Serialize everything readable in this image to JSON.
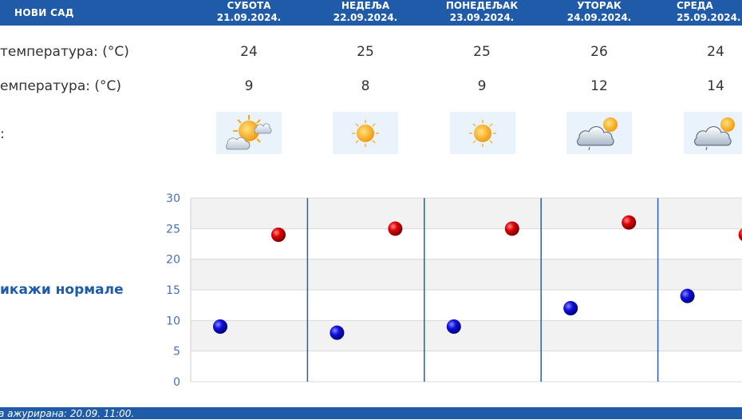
{
  "header": {
    "city": "НОВИ САД",
    "days": [
      {
        "name": "СУБОТА",
        "date": "21.09.2024."
      },
      {
        "name": "НЕДЕЉА",
        "date": "22.09.2024."
      },
      {
        "name": "ПОНЕДЕЉАК",
        "date": "23.09.2024."
      },
      {
        "name": "УТОРАК",
        "date": "24.09.2024."
      },
      {
        "name": "СРЕДА",
        "date": "25.09.2024."
      }
    ]
  },
  "rows": {
    "max_label": "температура: (°C)",
    "min_label": "емпература: (°C)",
    "weather_label": ":",
    "max_values": [
      "24",
      "25",
      "25",
      "26",
      "24"
    ],
    "min_values": [
      "9",
      "8",
      "9",
      "12",
      "14"
    ],
    "icons": [
      "partly-cloudy-sun-icon",
      "sun-icon",
      "sun-icon",
      "cloud-rain-sun-icon",
      "cloud-rain-sun-icon"
    ]
  },
  "normals_link": "икажи нормале",
  "footer": {
    "updated": "а ажурирана:  20.09.  11:00."
  },
  "colors": {
    "header_bg": "#1f5ba8",
    "max_marker": "#cc0000",
    "min_marker": "#0000cc",
    "tick_label": "#4a6fb5"
  },
  "chart_data": {
    "type": "scatter",
    "categories": [
      "21.09.2024.",
      "22.09.2024.",
      "23.09.2024.",
      "24.09.2024.",
      "25.09.2024."
    ],
    "series": [
      {
        "values": [
          24,
          25,
          25,
          26,
          24
        ]
      },
      {
        "values": [
          9,
          8,
          9,
          12,
          14
        ]
      }
    ],
    "ylim": [
      0,
      30
    ],
    "yticks": [
      "0",
      "5",
      "10",
      "15",
      "20",
      "25",
      "30"
    ],
    "grid": true
  }
}
